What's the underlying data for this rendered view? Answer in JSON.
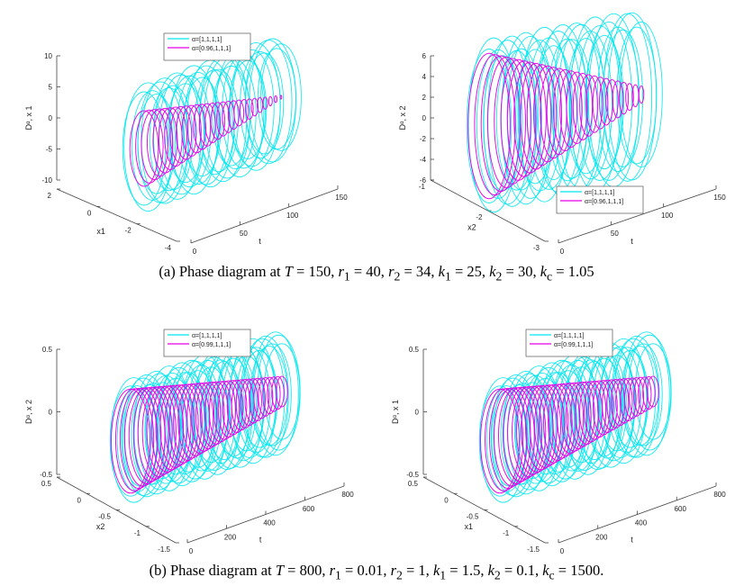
{
  "figure": {
    "caption_a": {
      "prefix": "(a) Phase diagram at ",
      "T": "T",
      "eq_T": " = 150, ",
      "r1": "r",
      "r1_sub": "1",
      "r1_val": " = 40, ",
      "r2": "r",
      "r2_sub": "2",
      "r2_val": " = 34, ",
      "k1": "k",
      "k1_sub": "1",
      "k1_val": " = 25, ",
      "k2": "k",
      "k2_sub": "2",
      "k2_val": " = 30, ",
      "kc": "k",
      "kc_sub": "c",
      "kc_val": " = 1.05"
    },
    "caption_b": {
      "prefix": "(b) Phase diagram at ",
      "T": "T",
      "eq_T": " = 800, ",
      "r1": "r",
      "r1_sub": "1",
      "r1_val": " = 0.01,  ",
      "r2": "r",
      "r2_sub": "2",
      "r2_val": " = 1,  ",
      "k1": "k",
      "k1_sub": "1",
      "k1_val": " = 1.5,  ",
      "k2": "k",
      "k2_sub": "2",
      "k2_val": " = 0.1,  ",
      "kc": "k",
      "kc_sub": "c",
      "kc_val": " = 1500."
    }
  },
  "colors": {
    "series_1": "#00e5ee",
    "series_2": "#e600e6",
    "axis": "#444444"
  },
  "chart_data": [
    {
      "type": "scatter",
      "panel": "a-left",
      "zlabel": "D^α, x_1",
      "xlabel": "t",
      "ylabel": "x_1",
      "z_ticks": [
        "10",
        "5",
        "0",
        "-5",
        "-10"
      ],
      "t_ticks": [
        "0",
        "50",
        "100",
        "150"
      ],
      "y_ticks": [
        "2",
        "0",
        "-2",
        "-4"
      ],
      "t_range": [
        0,
        150
      ],
      "z_range": [
        -10,
        10
      ],
      "legend_position": "top",
      "series": [
        {
          "name": "α=[1,1,1,1]",
          "color": "#00e5ee",
          "shape": "cylinder",
          "t": [
            0,
            150
          ],
          "radius": [
            1.0,
            1.0
          ]
        },
        {
          "name": "α=[0.96,1,1,1]",
          "color": "#e600e6",
          "shape": "cone",
          "t": [
            0,
            150
          ],
          "radius": [
            0.6,
            0.03
          ]
        }
      ]
    },
    {
      "type": "scatter",
      "panel": "a-right",
      "zlabel": "D^α, x_2",
      "xlabel": "t",
      "ylabel": "x_2",
      "z_ticks": [
        "6",
        "4",
        "2",
        "0",
        "-2",
        "-4",
        "-6"
      ],
      "t_ticks": [
        "0",
        "50",
        "100",
        "150"
      ],
      "y_ticks": [
        "-1",
        "-2",
        "-3"
      ],
      "t_range": [
        0,
        150
      ],
      "z_range": [
        -6,
        6
      ],
      "legend_position": "bottom-right",
      "series": [
        {
          "name": "α=[1,1,1,1]",
          "color": "#00e5ee",
          "shape": "cylinder",
          "t": [
            0,
            150
          ],
          "radius": [
            1.0,
            1.0
          ]
        },
        {
          "name": "α=[0.96,1,1,1]",
          "color": "#e600e6",
          "shape": "cone",
          "t": [
            0,
            150
          ],
          "radius": [
            0.85,
            0.1
          ]
        }
      ]
    },
    {
      "type": "scatter",
      "panel": "b-left",
      "zlabel": "D^α, x_2",
      "xlabel": "t",
      "ylabel": "x_2",
      "z_ticks": [
        "0.5",
        "0",
        "-0.5"
      ],
      "t_ticks": [
        "0",
        "200",
        "400",
        "600",
        "800"
      ],
      "y_ticks": [
        "0.5",
        "0",
        "-0.5",
        "-1",
        "-1.5"
      ],
      "t_range": [
        0,
        800
      ],
      "z_range": [
        -0.5,
        0.5
      ],
      "legend_position": "top",
      "series": [
        {
          "name": "α=[1,1,1,1]",
          "color": "#00e5ee",
          "shape": "cylinder",
          "t": [
            0,
            800
          ],
          "radius": [
            1.0,
            1.0
          ]
        },
        {
          "name": "α=[0.99,1,1,1]",
          "color": "#e600e6",
          "shape": "cone",
          "t": [
            0,
            800
          ],
          "radius": [
            0.85,
            0.25
          ]
        }
      ]
    },
    {
      "type": "scatter",
      "panel": "b-right",
      "zlabel": "D^α, x_1",
      "xlabel": "t",
      "ylabel": "x_1",
      "z_ticks": [
        "0.5",
        "0",
        "-0.5"
      ],
      "t_ticks": [
        "0",
        "200",
        "400",
        "600",
        "800"
      ],
      "y_ticks": [
        "0.5",
        "0",
        "-0.5",
        "-1",
        "-1.5"
      ],
      "t_range": [
        0,
        800
      ],
      "z_range": [
        -0.5,
        0.5
      ],
      "legend_position": "top",
      "series": [
        {
          "name": "α=[1,1,1,1]",
          "color": "#00e5ee",
          "shape": "cylinder",
          "t": [
            0,
            800
          ],
          "radius": [
            1.0,
            1.0
          ]
        },
        {
          "name": "α=[0.99,1,1,1]",
          "color": "#e600e6",
          "shape": "cone",
          "t": [
            0,
            800
          ],
          "radius": [
            0.85,
            0.25
          ]
        }
      ]
    }
  ]
}
